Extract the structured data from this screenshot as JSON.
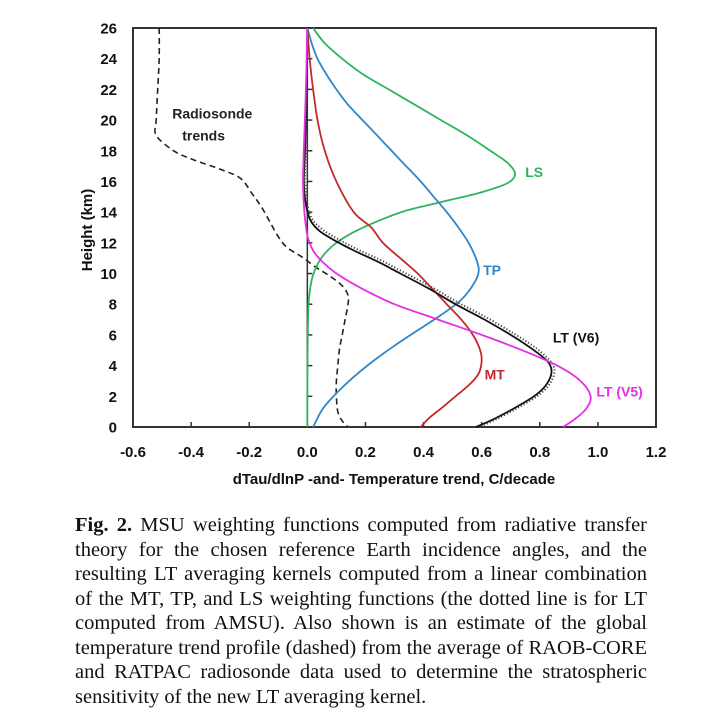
{
  "chart_data": {
    "type": "line",
    "title": "",
    "xlabel": "dTau/dlnP  -and-  Temperature trend, C/decade",
    "ylabel": "Height (km)",
    "xlim": [
      -0.6,
      1.2
    ],
    "ylim": [
      0,
      26
    ],
    "x_ticks": [
      "-0.6",
      "-0.4",
      "-0.2",
      "0.0",
      "0.2",
      "0.4",
      "0.6",
      "0.8",
      "1.0",
      "1.2"
    ],
    "x_tick_values": [
      -0.6,
      -0.4,
      -0.2,
      0.0,
      0.2,
      0.4,
      0.6,
      0.8,
      1.0,
      1.2
    ],
    "y_ticks": [
      "0",
      "2",
      "4",
      "6",
      "8",
      "10",
      "12",
      "14",
      "16",
      "18",
      "20",
      "22",
      "24",
      "26"
    ],
    "y_tick_values": [
      0,
      2,
      4,
      6,
      8,
      10,
      12,
      14,
      16,
      18,
      20,
      22,
      24,
      26
    ],
    "grid": false,
    "legend": "none (inline labels)",
    "series": [
      {
        "name": "Radiosonde trends",
        "label": "Radiosonde\ntrends",
        "color": "#222222",
        "style": "dashed",
        "points": [
          [
            -0.51,
            26
          ],
          [
            -0.51,
            24
          ],
          [
            -0.515,
            22
          ],
          [
            -0.52,
            20
          ],
          [
            -0.52,
            19
          ],
          [
            -0.46,
            18
          ],
          [
            -0.39,
            17.4
          ],
          [
            -0.3,
            16.8
          ],
          [
            -0.23,
            16.2
          ],
          [
            -0.19,
            15.2
          ],
          [
            -0.16,
            14.4
          ],
          [
            -0.13,
            13.4
          ],
          [
            -0.1,
            12.4
          ],
          [
            -0.07,
            11.7
          ],
          [
            -0.02,
            11.1
          ],
          [
            0.03,
            10.4
          ],
          [
            0.08,
            9.8
          ],
          [
            0.12,
            9.2
          ],
          [
            0.14,
            8.6
          ],
          [
            0.14,
            8
          ],
          [
            0.13,
            7
          ],
          [
            0.12,
            6
          ],
          [
            0.11,
            5
          ],
          [
            0.105,
            4
          ],
          [
            0.1,
            3
          ],
          [
            0.1,
            2
          ],
          [
            0.105,
            1
          ],
          [
            0.12,
            0.4
          ],
          [
            0.14,
            0
          ]
        ]
      },
      {
        "name": "LS",
        "label": "LS",
        "color": "#2db55d",
        "style": "solid",
        "points": [
          [
            0.02,
            26
          ],
          [
            0.06,
            25
          ],
          [
            0.12,
            24
          ],
          [
            0.19,
            23
          ],
          [
            0.28,
            22
          ],
          [
            0.37,
            21
          ],
          [
            0.46,
            20
          ],
          [
            0.55,
            19
          ],
          [
            0.63,
            18
          ],
          [
            0.69,
            17.2
          ],
          [
            0.715,
            16.5
          ],
          [
            0.69,
            15.9
          ],
          [
            0.6,
            15.3
          ],
          [
            0.47,
            14.7
          ],
          [
            0.34,
            14.1
          ],
          [
            0.24,
            13.4
          ],
          [
            0.16,
            12.7
          ],
          [
            0.1,
            12
          ],
          [
            0.06,
            11.3
          ],
          [
            0.035,
            10.6
          ],
          [
            0.018,
            9.8
          ],
          [
            0.008,
            8.8
          ],
          [
            0.003,
            7.5
          ],
          [
            0.001,
            5
          ],
          [
            0.0,
            2
          ],
          [
            0.0,
            0
          ]
        ]
      },
      {
        "name": "TP",
        "label": "TP",
        "color": "#2f86c8",
        "style": "solid",
        "points": [
          [
            0.0,
            26
          ],
          [
            0.015,
            25
          ],
          [
            0.035,
            24
          ],
          [
            0.065,
            23
          ],
          [
            0.1,
            22
          ],
          [
            0.14,
            21
          ],
          [
            0.19,
            20
          ],
          [
            0.24,
            19
          ],
          [
            0.29,
            18
          ],
          [
            0.34,
            17
          ],
          [
            0.39,
            16
          ],
          [
            0.435,
            15
          ],
          [
            0.48,
            14
          ],
          [
            0.52,
            13
          ],
          [
            0.555,
            12
          ],
          [
            0.58,
            11
          ],
          [
            0.59,
            10.2
          ],
          [
            0.575,
            9.4
          ],
          [
            0.53,
            8.3
          ],
          [
            0.46,
            7.3
          ],
          [
            0.38,
            6.3
          ],
          [
            0.3,
            5.3
          ],
          [
            0.22,
            4.2
          ],
          [
            0.15,
            3.1
          ],
          [
            0.09,
            2
          ],
          [
            0.05,
            1.1
          ],
          [
            0.02,
            0
          ]
        ]
      },
      {
        "name": "MT",
        "label": "MT",
        "color": "#c42a2a",
        "style": "solid",
        "points": [
          [
            0.0,
            26
          ],
          [
            0.008,
            24
          ],
          [
            0.02,
            22
          ],
          [
            0.035,
            20
          ],
          [
            0.06,
            18
          ],
          [
            0.1,
            16
          ],
          [
            0.16,
            14
          ],
          [
            0.22,
            13
          ],
          [
            0.26,
            12
          ],
          [
            0.32,
            11
          ],
          [
            0.38,
            10
          ],
          [
            0.43,
            9
          ],
          [
            0.48,
            8
          ],
          [
            0.53,
            7
          ],
          [
            0.57,
            6
          ],
          [
            0.595,
            5
          ],
          [
            0.6,
            4.3
          ],
          [
            0.59,
            3.5
          ],
          [
            0.56,
            2.8
          ],
          [
            0.51,
            2
          ],
          [
            0.46,
            1.2
          ],
          [
            0.42,
            0.6
          ],
          [
            0.39,
            0
          ]
        ]
      },
      {
        "name": "LT (V6)",
        "label": "LT (V6)",
        "color": "#111111",
        "style": "solid",
        "points": [
          [
            0.0,
            26
          ],
          [
            -0.003,
            22
          ],
          [
            -0.008,
            18
          ],
          [
            -0.012,
            16
          ],
          [
            -0.005,
            14.5
          ],
          [
            0.01,
            13.5
          ],
          [
            0.04,
            12.8
          ],
          [
            0.09,
            12.2
          ],
          [
            0.16,
            11.5
          ],
          [
            0.24,
            10.8
          ],
          [
            0.32,
            10
          ],
          [
            0.42,
            9
          ],
          [
            0.51,
            8
          ],
          [
            0.61,
            7
          ],
          [
            0.7,
            6
          ],
          [
            0.78,
            5
          ],
          [
            0.83,
            4.2
          ],
          [
            0.84,
            3.5
          ],
          [
            0.82,
            2.7
          ],
          [
            0.78,
            2
          ],
          [
            0.71,
            1.2
          ],
          [
            0.64,
            0.5
          ],
          [
            0.58,
            0
          ]
        ]
      },
      {
        "name": "LT (AMSU)",
        "label": "",
        "color": "#444444",
        "style": "dotted",
        "points": [
          [
            0.0,
            26
          ],
          [
            -0.002,
            22
          ],
          [
            -0.006,
            18
          ],
          [
            -0.008,
            16
          ],
          [
            0.0,
            14.5
          ],
          [
            0.015,
            13.6
          ],
          [
            0.05,
            12.9
          ],
          [
            0.1,
            12.3
          ],
          [
            0.17,
            11.6
          ],
          [
            0.25,
            10.9
          ],
          [
            0.33,
            10.1
          ],
          [
            0.43,
            9.1
          ],
          [
            0.52,
            8.1
          ],
          [
            0.62,
            7.1
          ],
          [
            0.71,
            6.1
          ],
          [
            0.79,
            5.1
          ],
          [
            0.84,
            4.2
          ],
          [
            0.85,
            3.5
          ],
          [
            0.83,
            2.7
          ],
          [
            0.79,
            2
          ],
          [
            0.72,
            1.2
          ],
          [
            0.65,
            0.5
          ],
          [
            0.59,
            0
          ]
        ]
      },
      {
        "name": "LT (V5)",
        "label": "LT (V5)",
        "color": "#e62ee6",
        "style": "solid",
        "points": [
          [
            0.0,
            26
          ],
          [
            -0.005,
            22
          ],
          [
            -0.012,
            18
          ],
          [
            -0.015,
            16
          ],
          [
            -0.01,
            14
          ],
          [
            0.0,
            12.5
          ],
          [
            0.02,
            11.5
          ],
          [
            0.05,
            10.8
          ],
          [
            0.1,
            10
          ],
          [
            0.19,
            9
          ],
          [
            0.3,
            8
          ],
          [
            0.45,
            7
          ],
          [
            0.6,
            6
          ],
          [
            0.74,
            5
          ],
          [
            0.86,
            4
          ],
          [
            0.94,
            3
          ],
          [
            0.975,
            2
          ],
          [
            0.96,
            1.2
          ],
          [
            0.92,
            0.5
          ],
          [
            0.88,
            0
          ]
        ]
      }
    ]
  },
  "caption": {
    "figure_number": "Fig. 2.",
    "text": " MSU weighting functions computed from radiative transfer theory for the chosen reference Earth incidence angles, and the resulting LT averaging kernels computed from a linear combination of the MT, TP, and LS weighting functions (the dotted line is for LT computed from AMSU). Also shown is an estimate of the global temperature trend profile (dashed) from the average of RAOB-CORE and RATPAC radiosonde data used to determine the stratospheric sensitivity of the new LT averaging kernel."
  }
}
